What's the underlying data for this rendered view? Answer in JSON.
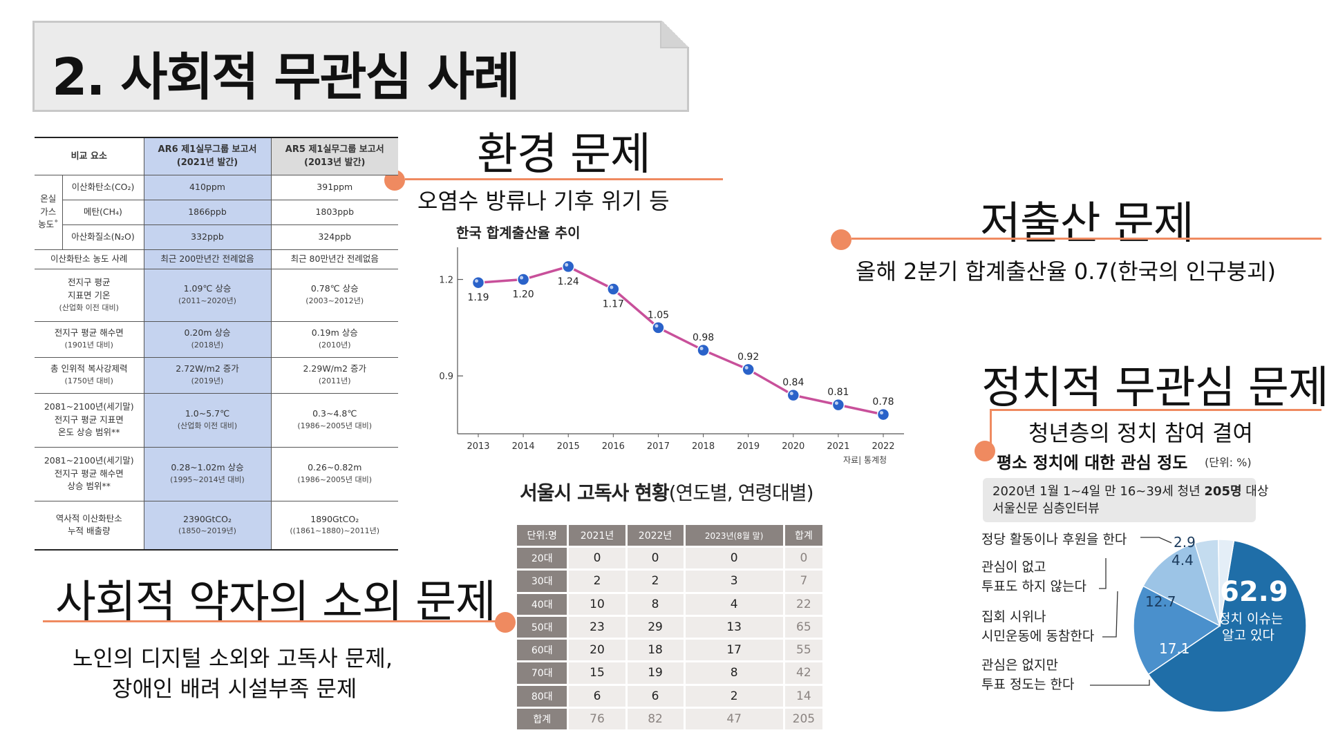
{
  "title": "2. 사회적 무관심 사례",
  "env": {
    "heading": "환경 문제",
    "subtitle": "오염수 방류나 기후 위기 등"
  },
  "birth": {
    "heading": "저출산 문제",
    "subtitle": "올해 2분기 합계출산율 0.7(한국의 인구붕괴)"
  },
  "political": {
    "heading": "정치적 무관심 문제",
    "subtitle": "청년층의 정치 참여 결여"
  },
  "vulnerable": {
    "heading": "사회적 약자의 소외 문제",
    "line1": "노인의 디지털 소외와 고독사 문제,",
    "line2": "장애인 배려 시설부족 문제"
  },
  "climate_table": {
    "header": {
      "col0": "비교 요소",
      "ar6_l1": "AR6 제1실무그룹 보고서",
      "ar6_l2": "(2021년 발간)",
      "ar5_l1": "AR5 제1실무그룹 보고서",
      "ar5_l2": "(2013년 발간)"
    },
    "group": {
      "l1": "온실",
      "l2": "가스",
      "l3": "농도˚"
    },
    "gas_rows": [
      {
        "label": "이산화탄소(CO₂)",
        "ar6": "410ppm",
        "ar5": "391ppm"
      },
      {
        "label": "메탄(CH₄)",
        "ar6": "1866ppb",
        "ar5": "1803ppb"
      },
      {
        "label": "아산화질소(N₂O)",
        "ar6": "332ppb",
        "ar5": "324ppb"
      }
    ],
    "rows": [
      {
        "label": [
          "이산화탄소 농도 사례"
        ],
        "ar6": "최근 200만년간 전례없음",
        "ar6_sub": "",
        "ar5": "최근 80만년간 전례없음",
        "ar5_sub": ""
      },
      {
        "label": [
          "전지구 평균",
          "지표면 기온",
          "(산업화 이전 대비)"
        ],
        "ar6": "1.09℃ 상승",
        "ar6_sub": "(2011~2020년)",
        "ar5": "0.78℃ 상승",
        "ar5_sub": "(2003~2012년)"
      },
      {
        "label": [
          "전지구 평균 해수면",
          "(1901년 대비)"
        ],
        "ar6": "0.20m 상승",
        "ar6_sub": "(2018년)",
        "ar5": "0.19m 상승",
        "ar5_sub": "(2010년)"
      },
      {
        "label": [
          "총 인위적 복사강제력",
          "(1750년 대비)"
        ],
        "ar6": "2.72W/m2 증가",
        "ar6_sub": "(2019년)",
        "ar5": "2.29W/m2 증가",
        "ar5_sub": "(2011년)"
      },
      {
        "label": [
          "2081~2100년(세기말)",
          "전지구 평균 지표면",
          "온도 상승 범위**"
        ],
        "ar6": "1.0~5.7℃",
        "ar6_sub": "(산업화 이전 대비)",
        "ar5": "0.3~4.8℃",
        "ar5_sub": "(1986~2005년 대비)"
      },
      {
        "label": [
          "2081~2100년(세기말)",
          "전지구 평균 해수면",
          "상승 범위**"
        ],
        "ar6": "0.28~1.02m 상승",
        "ar6_sub": "(1995~2014년 대비)",
        "ar5": "0.26~0.82m",
        "ar5_sub": "(1986~2005년 대비)"
      },
      {
        "label": [
          "역사적 이산화탄소",
          "누적 배출량"
        ],
        "ar6": "2390GtCO₂",
        "ar6_sub": "(1850~2019년)",
        "ar5": "1890GtCO₂",
        "ar5_sub": "((1861~1880)~2011년)"
      }
    ]
  },
  "chart_data": {
    "type": "line",
    "title": "한국 합계출산율 추이",
    "x": [
      "2013",
      "2014",
      "2015",
      "2016",
      "2017",
      "2018",
      "2019",
      "2020",
      "2021",
      "2022"
    ],
    "values": [
      1.19,
      1.2,
      1.24,
      1.17,
      1.05,
      0.98,
      0.92,
      0.84,
      0.81,
      0.78
    ],
    "value_labels": [
      "1.19",
      "1.20",
      "1.24",
      "1.17",
      "1.05",
      "0.98",
      "0.92",
      "0.84",
      "0.81",
      "0.78"
    ],
    "yticks": [
      1.2,
      0.9
    ],
    "ytick_labels": [
      "1.2",
      "0.9"
    ],
    "ylim": [
      0.72,
      1.3
    ],
    "source": "자료| 통계청",
    "line_color": "#c8509a",
    "marker_color": "#2a62c9",
    "grid": false
  },
  "lonely_table": {
    "title_bold": "서울시 고독사 현황",
    "title_rest": "(연도별, 연령대별)",
    "headers": [
      "단위:명",
      "2021년",
      "2022년",
      "2023년(8월 말)",
      "합계"
    ],
    "rows": [
      {
        "label": "20대",
        "values": [
          "0",
          "0",
          "0"
        ],
        "total": "0"
      },
      {
        "label": "30대",
        "values": [
          "2",
          "2",
          "3"
        ],
        "total": "7"
      },
      {
        "label": "40대",
        "values": [
          "10",
          "8",
          "4"
        ],
        "total": "22"
      },
      {
        "label": "50대",
        "values": [
          "23",
          "29",
          "13"
        ],
        "total": "65"
      },
      {
        "label": "60대",
        "values": [
          "20",
          "18",
          "17"
        ],
        "total": "55"
      },
      {
        "label": "70대",
        "values": [
          "15",
          "19",
          "8"
        ],
        "total": "42"
      },
      {
        "label": "80대",
        "values": [
          "6",
          "6",
          "2"
        ],
        "total": "14"
      },
      {
        "label": "합계",
        "values": [
          "76",
          "82",
          "47"
        ],
        "total": "205"
      }
    ]
  },
  "pie": {
    "title": "평소 정치에 대한 관심 정도",
    "unit": "(단위: %)",
    "note_pre": "2020년 1월 1~4일 만 16~39세 청년 ",
    "note_bold": "205명",
    "note_post": " 대상",
    "note_line2": "서울신문 심층인터뷰",
    "slices": [
      {
        "label": [
          "정치 이슈는",
          "알고 있다"
        ],
        "value": 62.9,
        "display": "62.9",
        "color": "#1f6ea8"
      },
      {
        "label": [
          "관심은 없지만",
          "투표 정도는 한다"
        ],
        "value": 17.1,
        "display": "17.1",
        "color": "#4a90cc"
      },
      {
        "label": [
          "집회 시위나",
          "시민운동에 동참한다"
        ],
        "value": 12.7,
        "display": "12.7",
        "color": "#9cc4e6"
      },
      {
        "label": [
          "관심이 없고",
          "투표도 하지 않는다"
        ],
        "value": 4.4,
        "display": "4.4",
        "color": "#c4dcef"
      },
      {
        "label": [
          "정당 활동이나 후원을 한다"
        ],
        "value": 2.9,
        "display": "2.9",
        "color": "#e4eef7"
      }
    ]
  }
}
